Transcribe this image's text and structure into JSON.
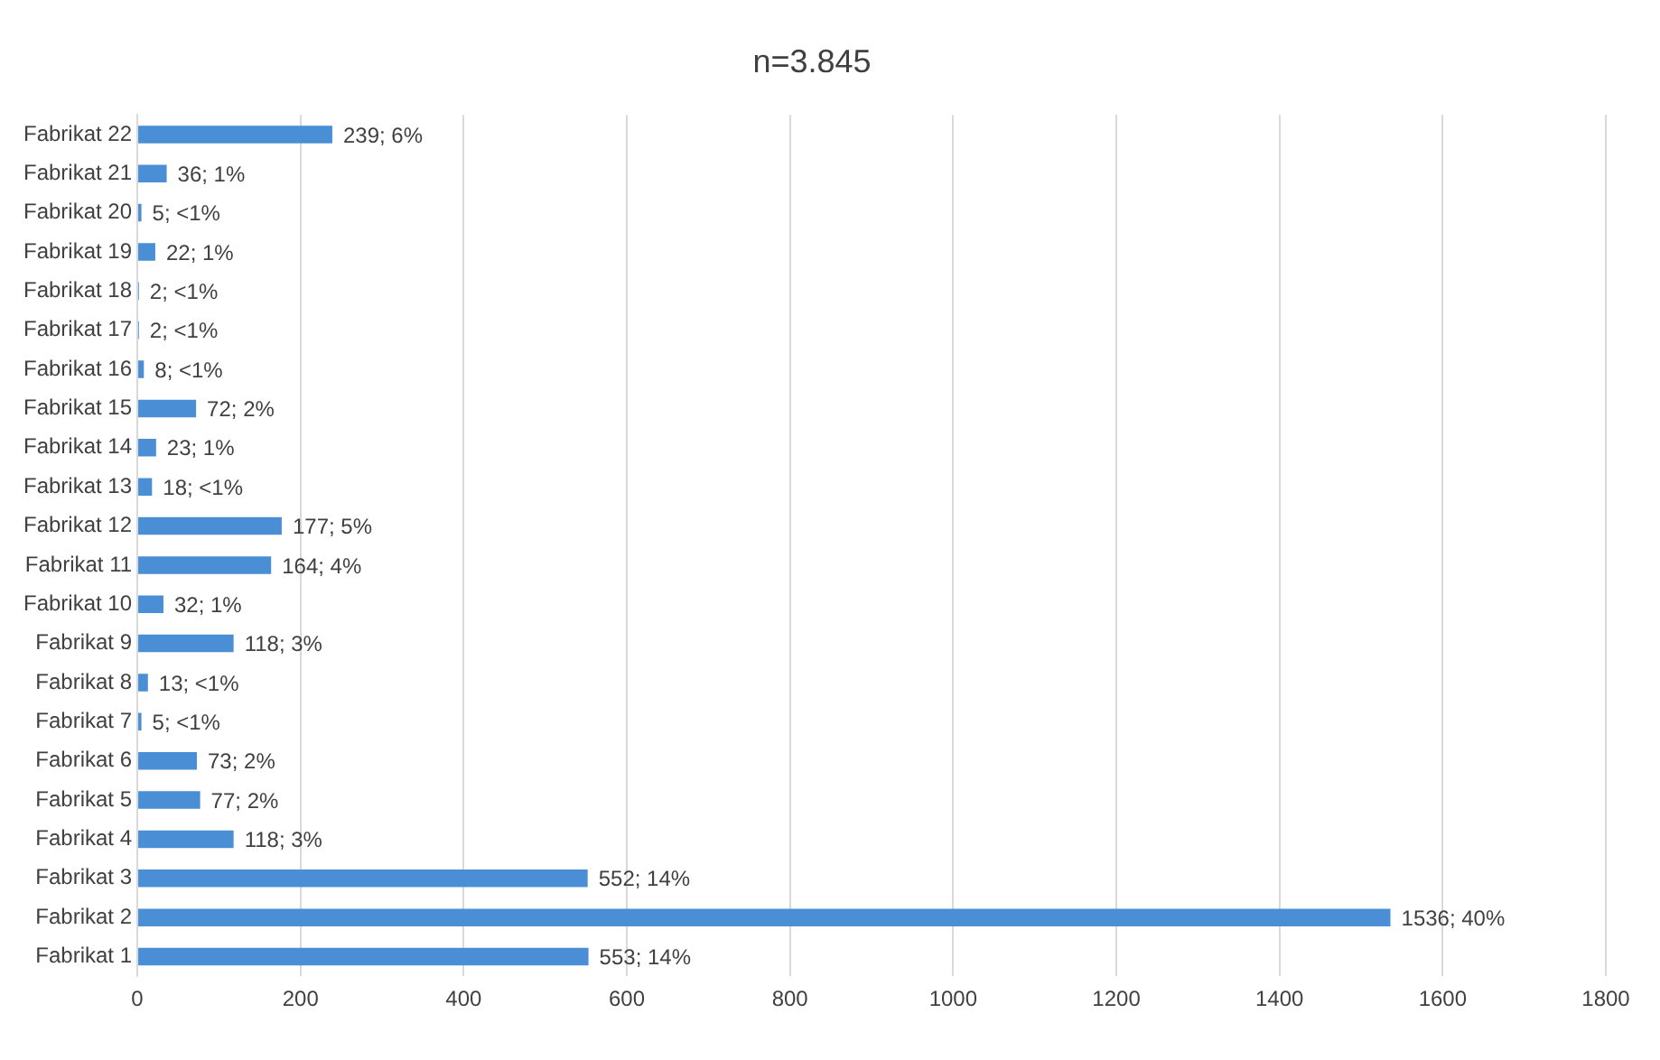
{
  "chart_data": {
    "type": "bar",
    "orientation": "horizontal",
    "title": "n=3.845",
    "categories": [
      "Fabrikat 22",
      "Fabrikat 21",
      "Fabrikat 20",
      "Fabrikat 19",
      "Fabrikat 18",
      "Fabrikat 17",
      "Fabrikat 16",
      "Fabrikat 15",
      "Fabrikat 14",
      "Fabrikat 13",
      "Fabrikat 12",
      "Fabrikat 11",
      "Fabrikat 10",
      "Fabrikat 9",
      "Fabrikat 8",
      "Fabrikat 7",
      "Fabrikat 6",
      "Fabrikat 5",
      "Fabrikat 4",
      "Fabrikat 3",
      "Fabrikat 2",
      "Fabrikat 1"
    ],
    "values": [
      239,
      36,
      5,
      22,
      2,
      2,
      8,
      72,
      23,
      18,
      177,
      164,
      32,
      118,
      13,
      5,
      73,
      77,
      118,
      552,
      1536,
      553
    ],
    "value_labels": [
      "239; 6%",
      "36; 1%",
      "5; <1%",
      "22; 1%",
      "2; <1%",
      "2; <1%",
      "8; <1%",
      "72; 2%",
      "23; 1%",
      "18; <1%",
      "177; 5%",
      "164; 4%",
      "32; 1%",
      "118; 3%",
      "13; <1%",
      "5; <1%",
      "73; 2%",
      "77; 2%",
      "118; 3%",
      "552; 14%",
      "1536; 40%",
      "553; 14%"
    ],
    "color": "#4a8fd6",
    "xlim": [
      0,
      1800
    ],
    "xticks": [
      0,
      200,
      400,
      600,
      800,
      1000,
      1200,
      1400,
      1600,
      1800
    ],
    "grid": "x",
    "legend": false
  }
}
